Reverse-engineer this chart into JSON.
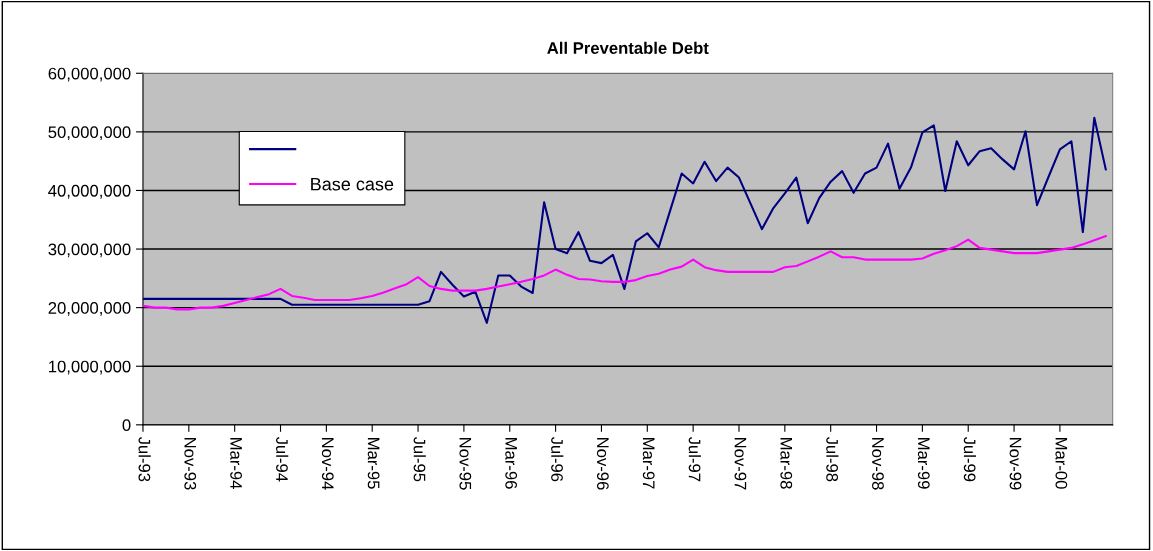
{
  "chart_data": {
    "type": "line",
    "title": "All Preventable Debt",
    "categories": [
      "Jul-93",
      null,
      null,
      null,
      "Nov-93",
      null,
      null,
      null,
      "Mar-94",
      null,
      null,
      null,
      "Jul-94",
      null,
      null,
      null,
      "Nov-94",
      null,
      null,
      null,
      "Mar-95",
      null,
      null,
      null,
      "Jul-95",
      null,
      null,
      null,
      "Nov-95",
      null,
      null,
      null,
      "Mar-96",
      null,
      null,
      null,
      "Jul-96",
      null,
      null,
      null,
      "Nov-96",
      null,
      null,
      null,
      "Mar-97",
      null,
      null,
      null,
      "Jul-97",
      null,
      null,
      null,
      "Nov-97",
      null,
      null,
      null,
      "Mar-98",
      null,
      null,
      null,
      "Jul-98",
      null,
      null,
      null,
      "Nov-98",
      null,
      null,
      null,
      "Mar-99",
      null,
      null,
      null,
      "Jul-99",
      null,
      null,
      null,
      "Nov-99",
      null,
      null,
      null,
      "Mar-00",
      null,
      null,
      null,
      null
    ],
    "series": [
      {
        "color": "#000080",
        "values": [
          21500000,
          21500000,
          21500000,
          21500000,
          21500000,
          21500000,
          21500000,
          21500000,
          21500000,
          21500000,
          21500000,
          21500000,
          21500000,
          20500000,
          20500000,
          20500000,
          20500000,
          20500000,
          20500000,
          20500000,
          20500000,
          20500000,
          20500000,
          20500000,
          20500000,
          21100000,
          26100000,
          23900000,
          21900000,
          22700000,
          17400000,
          25500000,
          25500000,
          23600000,
          22500000,
          38000000,
          30000000,
          29300000,
          32900000,
          28000000,
          27600000,
          29000000,
          23200000,
          31300000,
          32700000,
          30300000,
          36600000,
          42900000,
          41200000,
          44900000,
          41600000,
          43900000,
          42200000,
          37800000,
          33400000,
          37000000,
          39500000,
          42200000,
          34400000,
          38700000,
          41500000,
          43300000,
          39600000,
          42900000,
          43900000,
          48000000,
          40300000,
          43900000,
          49900000,
          51100000,
          39900000,
          48400000,
          44300000,
          46700000,
          47200000,
          45300000,
          43600000,
          50100000,
          37500000,
          42300000,
          47000000,
          48400000,
          32900000,
          52400000,
          43600000
        ]
      },
      {
        "name": "Base case",
        "color": "#ff00ff",
        "values": [
          20300000,
          20000000,
          20000000,
          19700000,
          19700000,
          20000000,
          20000000,
          20300000,
          20800000,
          21300000,
          21800000,
          22300000,
          23200000,
          22000000,
          21700000,
          21300000,
          21300000,
          21300000,
          21300000,
          21600000,
          22000000,
          22600000,
          23300000,
          24000000,
          25200000,
          23700000,
          23200000,
          22900000,
          22900000,
          22900000,
          23200000,
          23600000,
          24000000,
          24400000,
          24900000,
          25500000,
          26500000,
          25600000,
          24900000,
          24800000,
          24500000,
          24400000,
          24400000,
          24700000,
          25400000,
          25800000,
          26500000,
          27000000,
          28200000,
          26900000,
          26400000,
          26100000,
          26100000,
          26100000,
          26100000,
          26100000,
          26900000,
          27100000,
          27900000,
          28700000,
          29600000,
          28600000,
          28600000,
          28200000,
          28200000,
          28200000,
          28200000,
          28200000,
          28400000,
          29200000,
          29800000,
          30500000,
          31600000,
          30200000,
          29900000,
          29600000,
          29300000,
          29300000,
          29300000,
          29600000,
          29900000,
          30200000,
          30800000,
          31500000,
          32200000
        ]
      }
    ],
    "ylim": [
      0,
      60000000
    ],
    "yticks": [
      {
        "value": 0,
        "label": "0"
      },
      {
        "value": 10000000,
        "label": "10,000,000"
      },
      {
        "value": 20000000,
        "label": "20,000,000"
      },
      {
        "value": 30000000,
        "label": "30,000,000"
      },
      {
        "value": 40000000,
        "label": "40,000,000"
      },
      {
        "value": 50000000,
        "label": "50,000,000"
      },
      {
        "value": 60000000,
        "label": "60,000,000"
      }
    ],
    "grid": "y",
    "legend": "top left",
    "marker": "none",
    "line_style": "solid"
  }
}
